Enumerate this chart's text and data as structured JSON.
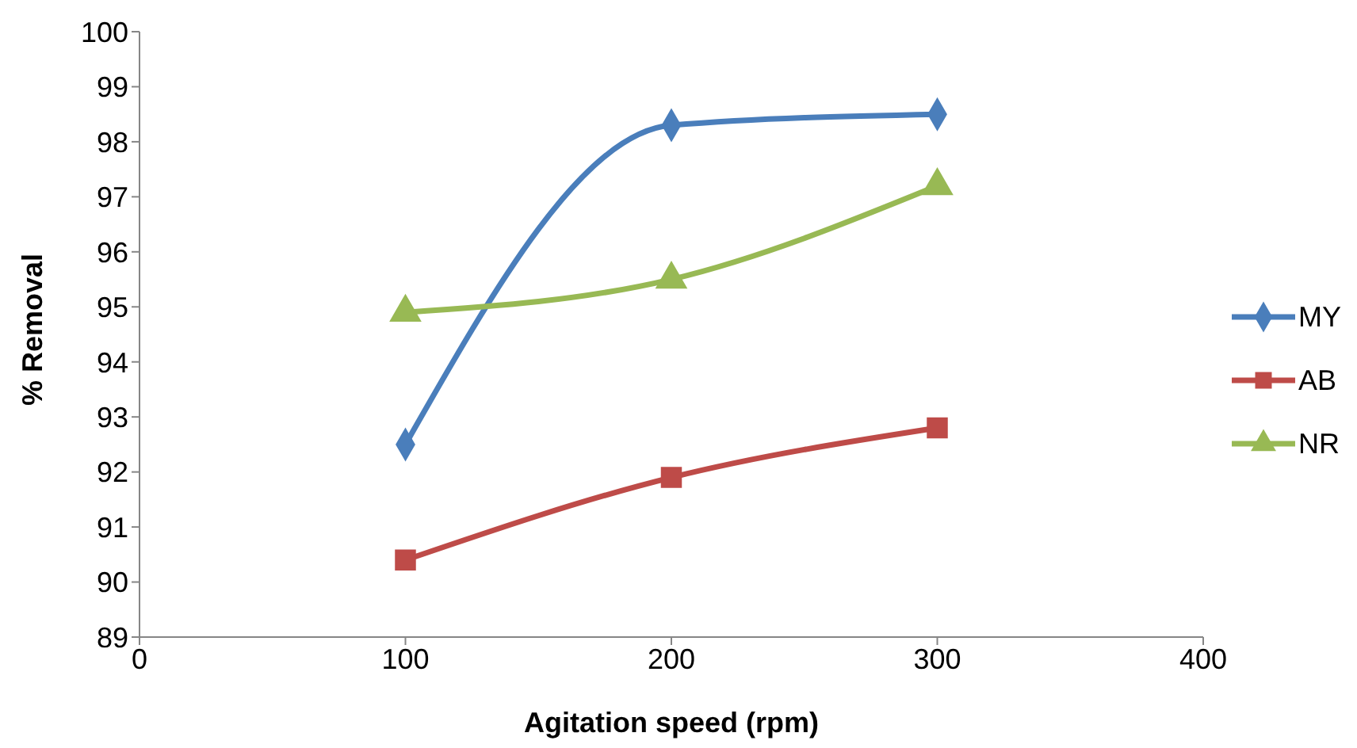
{
  "chart_data": {
    "type": "line",
    "xlabel": "Agitation speed (rpm)",
    "ylabel": "% Removal",
    "x": [
      100,
      200,
      300
    ],
    "series": [
      {
        "name": "MY",
        "color": "#4a7ebb",
        "marker": "diamond",
        "values": [
          92.5,
          98.3,
          98.5
        ]
      },
      {
        "name": "AB",
        "color": "#be4b48",
        "marker": "square",
        "values": [
          90.4,
          91.9,
          92.8
        ]
      },
      {
        "name": "NR",
        "color": "#98b954",
        "marker": "triangle",
        "values": [
          94.9,
          95.5,
          97.2
        ]
      }
    ],
    "xlim": [
      0,
      400
    ],
    "xticks": [
      0,
      100,
      200,
      300,
      400
    ],
    "ylim": [
      89,
      100
    ],
    "yticks": [
      89,
      90,
      91,
      92,
      93,
      94,
      95,
      96,
      97,
      98,
      99,
      100
    ],
    "grid": false,
    "legend": "right",
    "line_style": "solid"
  }
}
